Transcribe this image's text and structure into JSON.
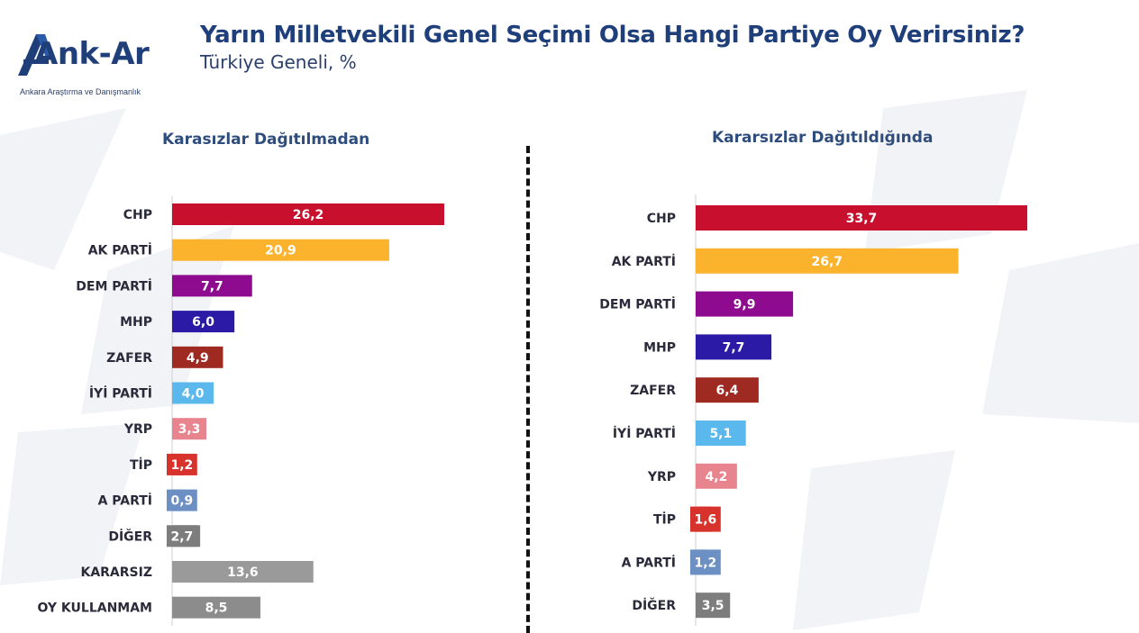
{
  "header": {
    "title": "Yarın Milletvekili Genel Seçimi Olsa Hangi Partiye Oy Verirsiniz?",
    "subtitle": "Türkiye Geneli, %"
  },
  "logo": {
    "name": "Ank-Ar",
    "tagline": "Ankara Araştırma ve Danışmanlık",
    "color": "#1f3f7a"
  },
  "chart_data": [
    {
      "type": "bar",
      "orientation": "horizontal",
      "title": "Karasızlar Dağıtılmadan",
      "categories": [
        "CHP",
        "AK PARTİ",
        "DEM PARTİ",
        "MHP",
        "ZAFER",
        "İYİ PARTİ",
        "YRP",
        "TİP",
        "A PARTİ",
        "DİĞER",
        "KARARSIZ",
        "OY KULLANMAM"
      ],
      "values": [
        26.2,
        20.9,
        7.7,
        6.0,
        4.9,
        4.0,
        3.3,
        1.2,
        0.9,
        2.7,
        13.6,
        8.5
      ],
      "labels": [
        "26,2",
        "20,9",
        "7,7",
        "6,0",
        "4,9",
        "4,0",
        "3,3",
        "1,2",
        "0,9",
        "2,7",
        "13,6",
        "8,5"
      ],
      "colors": [
        "#c8102e",
        "#fbb22d",
        "#8e0b8f",
        "#2a1aa6",
        "#9e2a22",
        "#5ab8ec",
        "#e8848e",
        "#d7332c",
        "#6c8fc4",
        "#7d7d7d",
        "#9a9a9a",
        "#8c8c8c"
      ],
      "xlim": [
        0,
        26.2
      ],
      "grid": false,
      "legend": "none"
    },
    {
      "type": "bar",
      "orientation": "horizontal",
      "title": "Kararsızlar Dağıtıldığında",
      "categories": [
        "CHP",
        "AK PARTİ",
        "DEM PARTİ",
        "MHP",
        "ZAFER",
        "İYİ PARTİ",
        "YRP",
        "TİP",
        "A PARTİ",
        "DİĞER"
      ],
      "values": [
        33.7,
        26.7,
        9.9,
        7.7,
        6.4,
        5.1,
        4.2,
        1.6,
        1.2,
        3.5
      ],
      "labels": [
        "33,7",
        "26,7",
        "9,9",
        "7,7",
        "6,4",
        "5,1",
        "4,2",
        "1,6",
        "1,2",
        "3,5"
      ],
      "colors": [
        "#c8102e",
        "#fbb22d",
        "#8e0b8f",
        "#2a1aa6",
        "#9e2a22",
        "#5ab8ec",
        "#e8848e",
        "#d7332c",
        "#6c8fc4",
        "#7d7d7d"
      ],
      "xlim": [
        0,
        33.7
      ],
      "grid": false,
      "legend": "none"
    }
  ]
}
